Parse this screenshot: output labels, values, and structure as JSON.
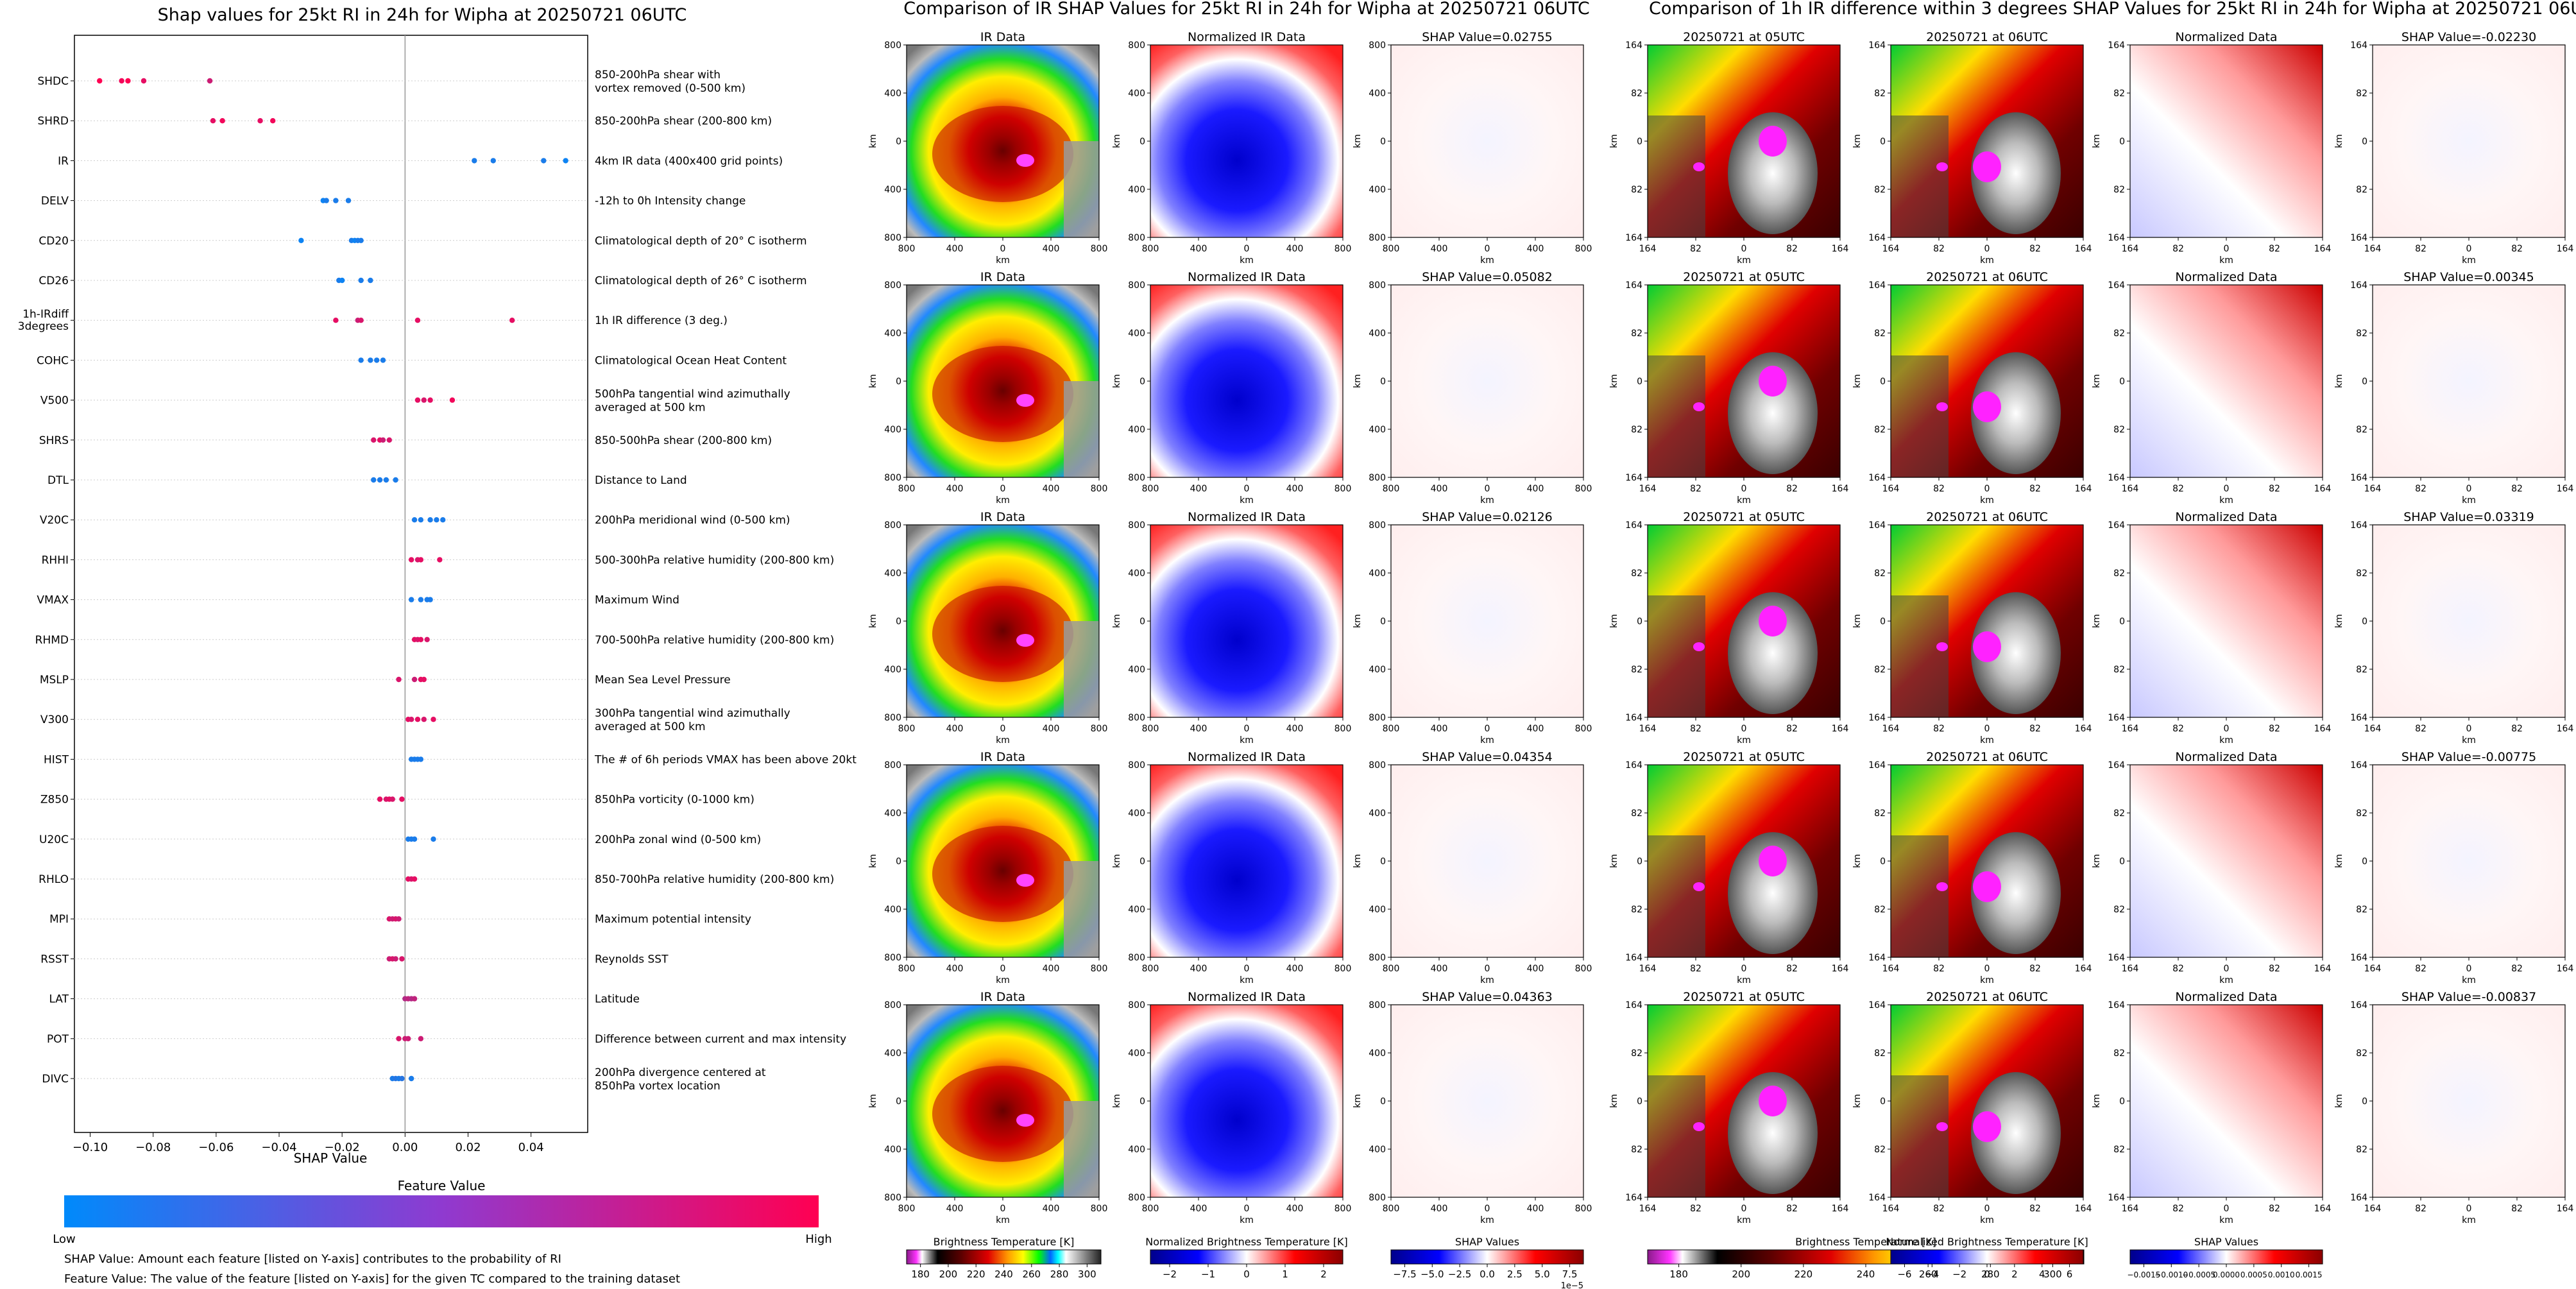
{
  "titles": {
    "shap_summary": "Shap values for 25kt RI in 24h for Wipha at 20250721 06UTC",
    "ir_comparison": "Comparison of IR SHAP Values for 25kt RI in 24h for Wipha at 20250721 06UTC",
    "diff_comparison": "Comparison of 1h IR difference within 3 degrees SHAP Values for 25kt RI in 24h for Wipha at 20250721 06UTC"
  },
  "colorbar": {
    "title": "Feature Value",
    "low": "Low",
    "high": "High",
    "low_color": "#008afb",
    "high_color": "#ff0052"
  },
  "notes": {
    "shap_value": "SHAP Value: Amount each feature [listed on Y-axis] contributes to the probability of RI",
    "feature_value": "Feature Value: The value of the feature [listed on Y-axis] for the given TC compared to the training dataset"
  },
  "chart_data": [
    {
      "type": "scatter",
      "title": "Shap values for 25kt RI in 24h for Wipha at 20250721 06UTC",
      "xlabel": "SHAP Value",
      "ylabel": "",
      "xlim": [
        -0.105,
        0.058
      ],
      "xticks": [
        "-0.10",
        "-0.08",
        "-0.06",
        "-0.04",
        "-0.02",
        "0.00",
        "0.02",
        "0.04"
      ],
      "xtick_values": [
        -0.1,
        -0.08,
        -0.06,
        -0.04,
        -0.02,
        0.0,
        0.02,
        0.04
      ],
      "grid": false,
      "features": [
        {
          "name": "SHDC",
          "desc": [
            "850-200hPa shear with",
            "vortex removed (0-500 km)"
          ],
          "points": [
            [
              -0.097,
              1
            ],
            [
              -0.09,
              0.95
            ],
            [
              -0.088,
              1
            ],
            [
              -0.083,
              0.9
            ],
            [
              -0.062,
              0.8
            ]
          ]
        },
        {
          "name": "SHRD",
          "desc": [
            "850-200hPa shear (200-800 km)"
          ],
          "points": [
            [
              -0.061,
              0.9
            ],
            [
              -0.058,
              0.95
            ],
            [
              -0.046,
              0.9
            ],
            [
              -0.042,
              0.95
            ]
          ]
        },
        {
          "name": "IR",
          "desc": [
            "4km IR data (400x400 grid points)"
          ],
          "points": [
            [
              0.022,
              0.1
            ],
            [
              0.028,
              0.1
            ],
            [
              0.044,
              0.1
            ],
            [
              0.051,
              0.05
            ]
          ]
        },
        {
          "name": "DELV",
          "desc": [
            "-12h to 0h Intensity change"
          ],
          "points": [
            [
              -0.026,
              0.05
            ],
            [
              -0.025,
              0.1
            ],
            [
              -0.022,
              0.1
            ],
            [
              -0.018,
              0.1
            ]
          ]
        },
        {
          "name": "CD20",
          "desc": [
            "Climatological depth of 20° C isotherm"
          ],
          "points": [
            [
              -0.033,
              0.05
            ],
            [
              -0.017,
              0.1
            ],
            [
              -0.016,
              0.05
            ],
            [
              -0.015,
              0.1
            ],
            [
              -0.014,
              0.1
            ]
          ]
        },
        {
          "name": "CD26",
          "desc": [
            "Climatological depth of 26° C isotherm"
          ],
          "points": [
            [
              -0.021,
              0.1
            ],
            [
              -0.02,
              0.05
            ],
            [
              -0.014,
              0.1
            ],
            [
              -0.011,
              0.1
            ]
          ]
        },
        {
          "name": "1h-IRdiff 3degrees",
          "desc": [
            "1h IR difference (3 deg.)"
          ],
          "points": [
            [
              -0.022,
              0.9
            ],
            [
              -0.015,
              0.8
            ],
            [
              -0.014,
              0.85
            ],
            [
              0.004,
              0.9
            ],
            [
              0.034,
              0.9
            ]
          ]
        },
        {
          "name": "COHC",
          "desc": [
            "Climatological Ocean Heat Content"
          ],
          "points": [
            [
              -0.014,
              0.1
            ],
            [
              -0.011,
              0.1
            ],
            [
              -0.009,
              0.1
            ],
            [
              -0.007,
              0.1
            ]
          ]
        },
        {
          "name": "V500",
          "desc": [
            "500hPa tangential wind azimuthally",
            "averaged at 500 km"
          ],
          "points": [
            [
              0.004,
              0.9
            ],
            [
              0.006,
              0.85
            ],
            [
              0.008,
              0.9
            ],
            [
              0.015,
              0.95
            ]
          ]
        },
        {
          "name": "SHRS",
          "desc": [
            "850-500hPa shear (200-800 km)"
          ],
          "points": [
            [
              -0.01,
              0.85
            ],
            [
              -0.008,
              0.9
            ],
            [
              -0.007,
              0.8
            ],
            [
              -0.005,
              0.85
            ]
          ]
        },
        {
          "name": "DTL",
          "desc": [
            "Distance to Land"
          ],
          "points": [
            [
              -0.01,
              0.1
            ],
            [
              -0.008,
              0.1
            ],
            [
              -0.006,
              0.1
            ],
            [
              -0.003,
              0.1
            ]
          ]
        },
        {
          "name": "V20C",
          "desc": [
            "200hPa meridional wind (0-500 km)"
          ],
          "points": [
            [
              0.003,
              0.1
            ],
            [
              0.005,
              0.1
            ],
            [
              0.008,
              0.1
            ],
            [
              0.01,
              0.1
            ],
            [
              0.012,
              0.1
            ]
          ]
        },
        {
          "name": "RHHI",
          "desc": [
            "500-300hPa relative humidity (200-800 km)"
          ],
          "points": [
            [
              0.002,
              0.9
            ],
            [
              0.004,
              0.85
            ],
            [
              0.005,
              0.9
            ],
            [
              0.011,
              0.9
            ]
          ]
        },
        {
          "name": "VMAX",
          "desc": [
            "Maximum Wind"
          ],
          "points": [
            [
              0.002,
              0.1
            ],
            [
              0.005,
              0.1
            ],
            [
              0.007,
              0.1
            ],
            [
              0.008,
              0.1
            ]
          ]
        },
        {
          "name": "RHMD",
          "desc": [
            "700-500hPa relative humidity (200-800 km)"
          ],
          "points": [
            [
              0.003,
              0.9
            ],
            [
              0.004,
              0.85
            ],
            [
              0.005,
              0.9
            ],
            [
              0.007,
              0.85
            ]
          ]
        },
        {
          "name": "MSLP",
          "desc": [
            "Mean Sea Level Pressure"
          ],
          "points": [
            [
              -0.002,
              0.85
            ],
            [
              0.003,
              0.8
            ],
            [
              0.005,
              0.9
            ],
            [
              0.006,
              0.9
            ]
          ]
        },
        {
          "name": "V300",
          "desc": [
            "300hPa tangential wind azimuthally",
            "averaged at 500 km"
          ],
          "points": [
            [
              0.001,
              0.9
            ],
            [
              0.002,
              0.85
            ],
            [
              0.004,
              0.9
            ],
            [
              0.006,
              0.85
            ],
            [
              0.009,
              0.9
            ]
          ]
        },
        {
          "name": "HIST",
          "desc": [
            "The # of 6h periods VMAX has been above 20kt"
          ],
          "points": [
            [
              0.002,
              0.1
            ],
            [
              0.003,
              0.1
            ],
            [
              0.004,
              0.1
            ],
            [
              0.005,
              0.1
            ]
          ]
        },
        {
          "name": "Z850",
          "desc": [
            "850hPa vorticity (0-1000 km)"
          ],
          "points": [
            [
              -0.008,
              0.9
            ],
            [
              -0.006,
              0.85
            ],
            [
              -0.005,
              0.9
            ],
            [
              -0.004,
              0.85
            ],
            [
              -0.001,
              0.9
            ]
          ]
        },
        {
          "name": "U20C",
          "desc": [
            "200hPa zonal wind (0-500 km)"
          ],
          "points": [
            [
              0.001,
              0.1
            ],
            [
              0.002,
              0.1
            ],
            [
              0.003,
              0.1
            ],
            [
              0.009,
              0.1
            ]
          ]
        },
        {
          "name": "RHLO",
          "desc": [
            "850-700hPa relative humidity (200-800 km)"
          ],
          "points": [
            [
              0.001,
              0.9
            ],
            [
              0.002,
              0.85
            ],
            [
              0.003,
              0.9
            ]
          ]
        },
        {
          "name": "MPI",
          "desc": [
            "Maximum potential intensity"
          ],
          "points": [
            [
              -0.005,
              0.85
            ],
            [
              -0.004,
              0.8
            ],
            [
              -0.003,
              0.85
            ],
            [
              -0.002,
              0.8
            ]
          ]
        },
        {
          "name": "RSST",
          "desc": [
            "Reynolds SST"
          ],
          "points": [
            [
              -0.005,
              0.8
            ],
            [
              -0.004,
              0.85
            ],
            [
              -0.003,
              0.8
            ],
            [
              -0.001,
              0.85
            ]
          ]
        },
        {
          "name": "LAT",
          "desc": [
            "Latitude"
          ],
          "points": [
            [
              0.0,
              0.7
            ],
            [
              0.001,
              0.75
            ],
            [
              0.002,
              0.7
            ],
            [
              0.003,
              0.75
            ]
          ]
        },
        {
          "name": "POT",
          "desc": [
            "Difference between current and max intensity"
          ],
          "points": [
            [
              -0.002,
              0.85
            ],
            [
              0.0,
              0.8
            ],
            [
              0.001,
              0.8
            ],
            [
              0.005,
              0.8
            ]
          ]
        },
        {
          "name": "DIVC",
          "desc": [
            "200hPa divergence centered at",
            "850hPa vortex location"
          ],
          "points": [
            [
              -0.004,
              0.1
            ],
            [
              -0.003,
              0.15
            ],
            [
              -0.002,
              0.1
            ],
            [
              -0.001,
              0.15
            ],
            [
              0.002,
              0.1
            ]
          ]
        }
      ]
    },
    {
      "type": "heatmap",
      "rows": [
        {
          "ir_title": "IR Data",
          "norm_title": "Normalized IR Data",
          "shap_title": "SHAP Value=0.02755",
          "t05": "20250721 at 05UTC",
          "t06": "20250721 at 06UTC",
          "diff_norm": "Normalized Data",
          "diff_shap": "SHAP Value=-0.02230"
        },
        {
          "ir_title": "IR Data",
          "norm_title": "Normalized IR Data",
          "shap_title": "SHAP Value=0.05082",
          "t05": "20250721 at 05UTC",
          "t06": "20250721 at 06UTC",
          "diff_norm": "Normalized Data",
          "diff_shap": "SHAP Value=0.00345"
        },
        {
          "ir_title": "IR Data",
          "norm_title": "Normalized IR Data",
          "shap_title": "SHAP Value=0.02126",
          "t05": "20250721 at 05UTC",
          "t06": "20250721 at 06UTC",
          "diff_norm": "Normalized Data",
          "diff_shap": "SHAP Value=0.03319"
        },
        {
          "ir_title": "IR Data",
          "norm_title": "Normalized IR Data",
          "shap_title": "SHAP Value=0.04354",
          "t05": "20250721 at 05UTC",
          "t06": "20250721 at 06UTC",
          "diff_norm": "Normalized Data",
          "diff_shap": "SHAP Value=-0.00775"
        },
        {
          "ir_title": "IR Data",
          "norm_title": "Normalized IR Data",
          "shap_title": "SHAP Value=0.04363",
          "t05": "20250721 at 05UTC",
          "t06": "20250721 at 06UTC",
          "diff_norm": "Normalized Data",
          "diff_shap": "SHAP Value=-0.00837"
        }
      ],
      "km_axis": {
        "label": "km",
        "ticks": [
          "800",
          "400",
          "0",
          "400",
          "800"
        ]
      },
      "diff_axis": {
        "label": "km",
        "ticks": [
          "164",
          "82",
          "0",
          "82",
          "164"
        ]
      },
      "colorbars": [
        {
          "label": "Brightness Temperature [K]",
          "ticks": [
            "180",
            "200",
            "220",
            "240",
            "260",
            "280",
            "300"
          ]
        },
        {
          "label": "Normalized Brightness Temperature [K]",
          "ticks": [
            "−2",
            "−1",
            "0",
            "1",
            "2"
          ]
        },
        {
          "label": "SHAP Values",
          "ticks": [
            "−7.5",
            "−5.0",
            "−2.5",
            "0.0",
            "2.5",
            "5.0",
            "7.5"
          ],
          "offset": "1e−5"
        },
        {
          "label": "Brightness Temperature [K]",
          "ticks": [
            "180",
            "200",
            "220",
            "240",
            "260",
            "280",
            "300"
          ]
        },
        {
          "label": "Normalized Brightness Temperature [K]",
          "ticks": [
            "−6",
            "−4",
            "−2",
            "0",
            "2",
            "4",
            "6"
          ]
        },
        {
          "label": "SHAP Values",
          "ticks": [
            "−0.0015",
            "−0.0010",
            "−0.0005",
            "0.0000",
            "0.0005",
            "0.0010",
            "0.0015"
          ]
        }
      ]
    }
  ]
}
